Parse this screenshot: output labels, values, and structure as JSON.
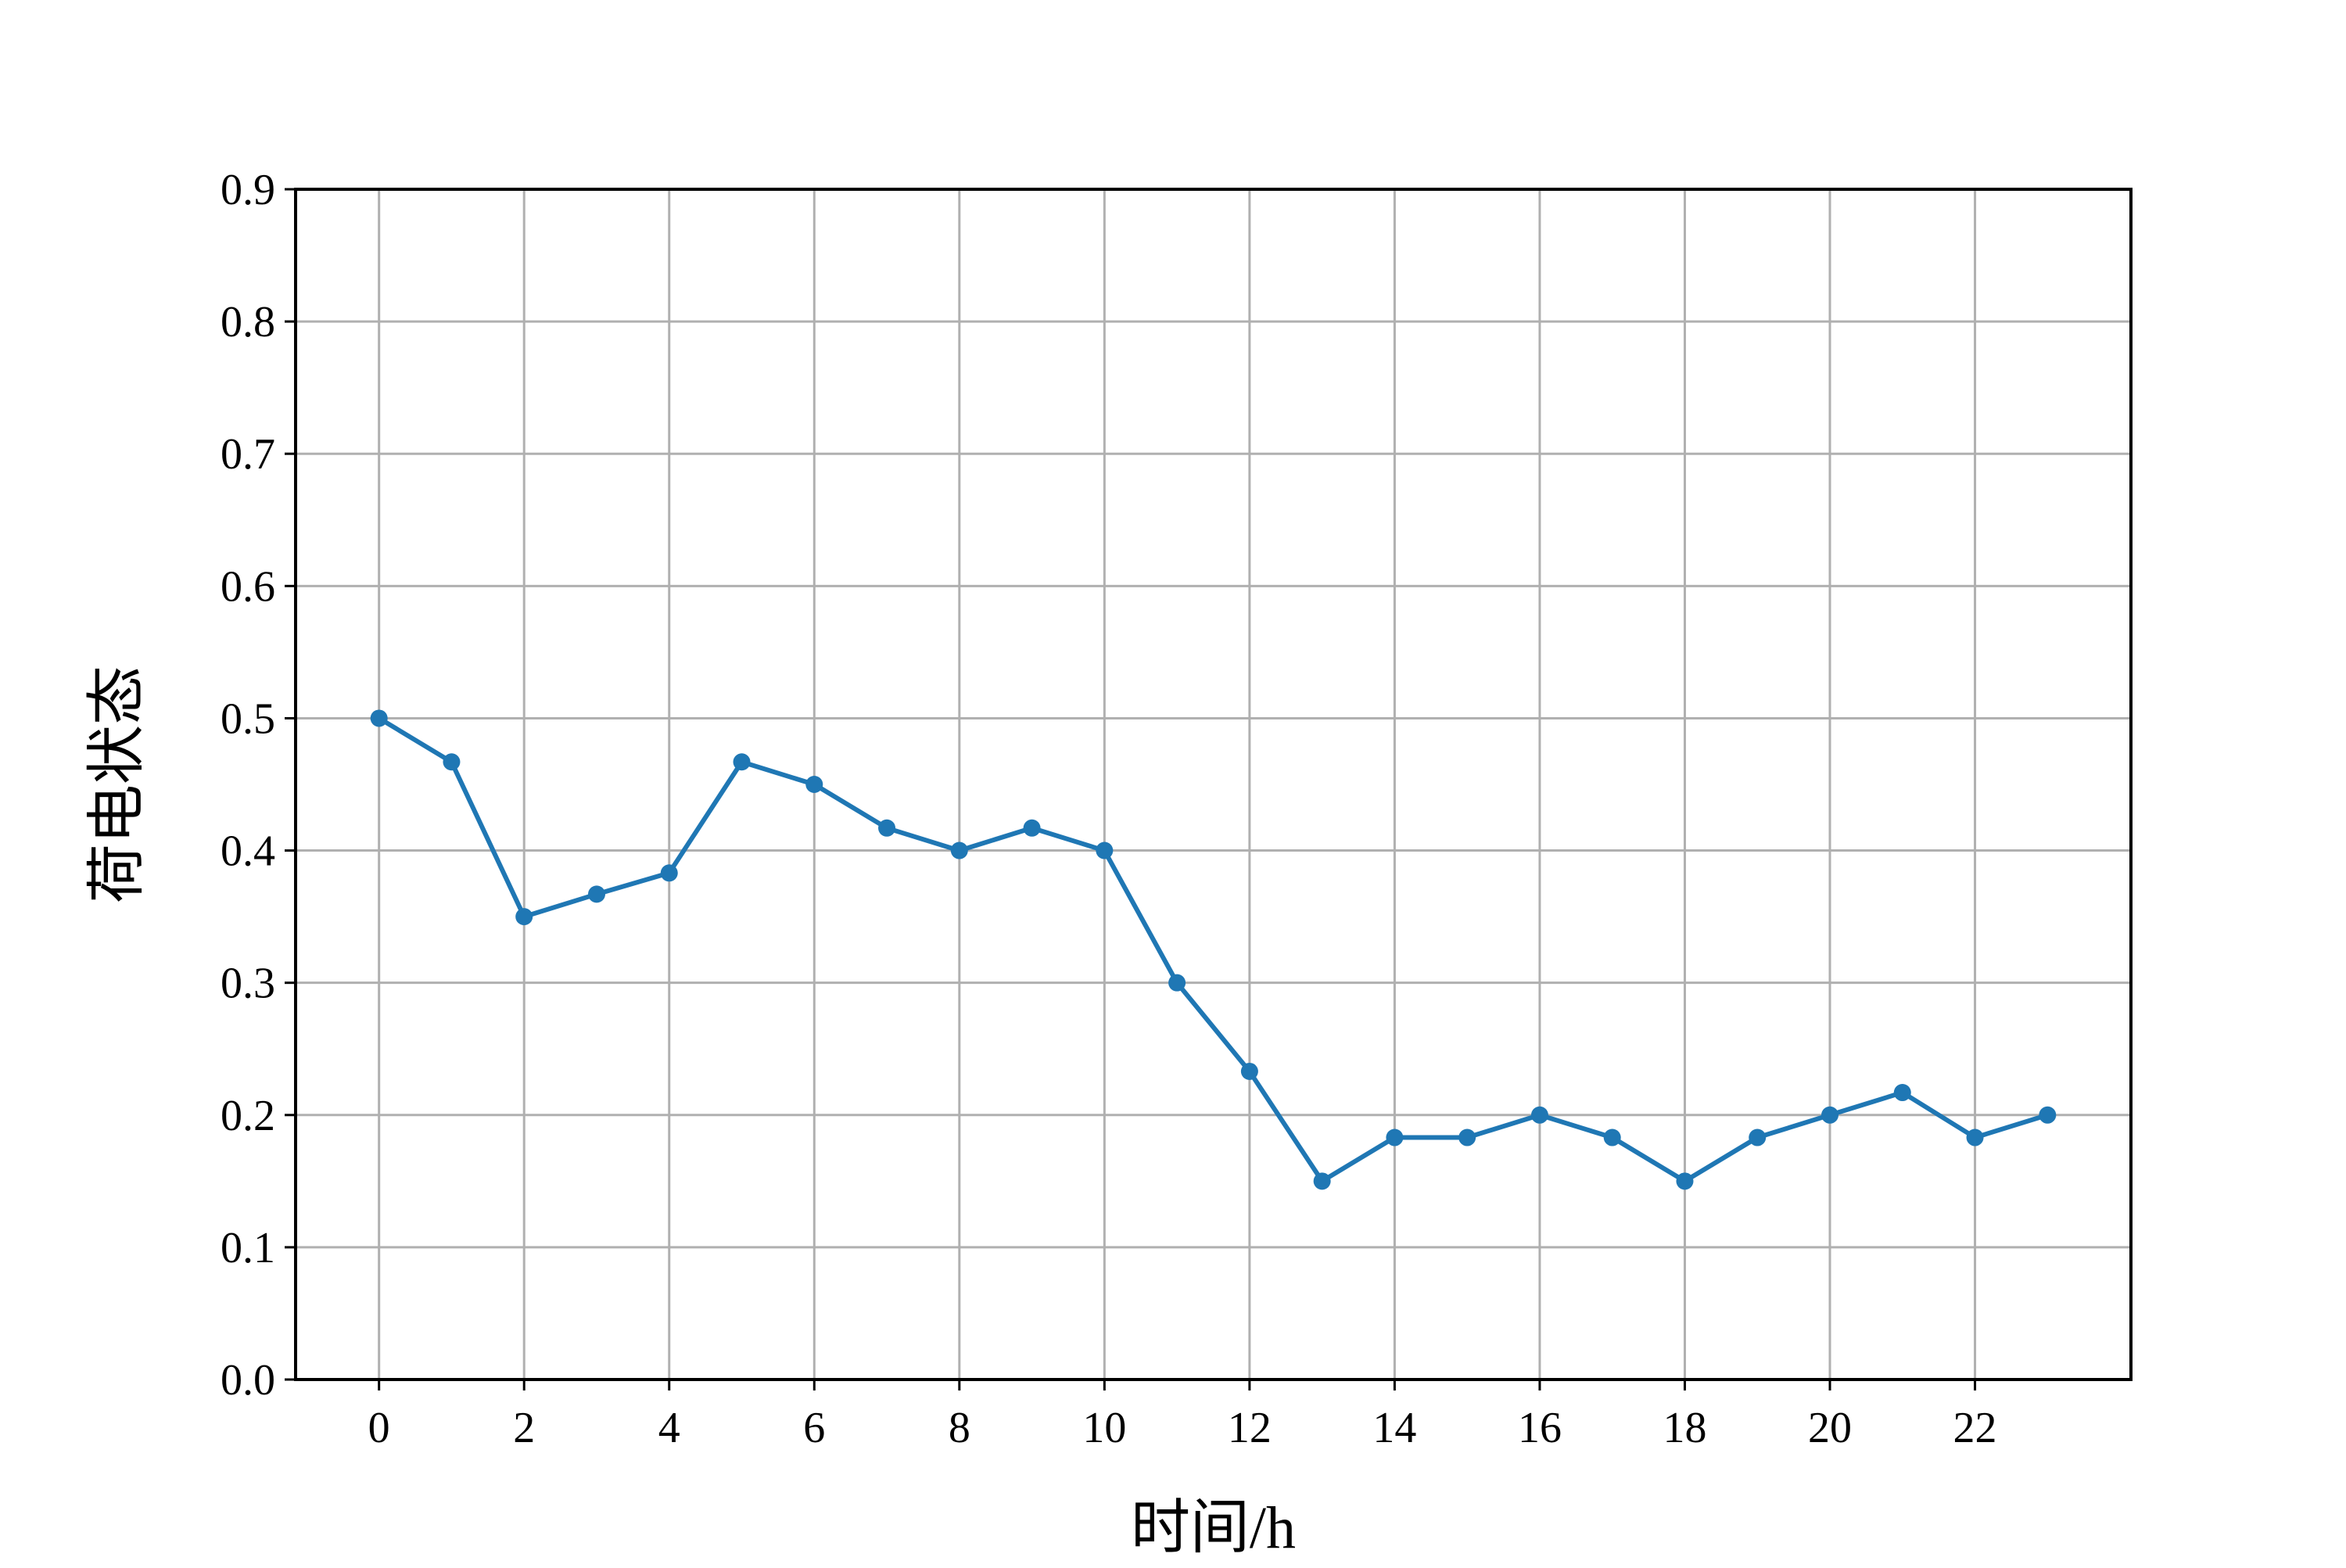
{
  "chart_data": {
    "type": "line",
    "title": "",
    "xlabel": "时间/h",
    "ylabel": "荷电状态",
    "xlim": [
      -1.15,
      24.15
    ],
    "ylim": [
      0.0,
      0.9
    ],
    "xticks": [
      0,
      2,
      4,
      6,
      8,
      10,
      12,
      14,
      16,
      18,
      20,
      22
    ],
    "yticks": [
      "0.0",
      "0.1",
      "0.2",
      "0.3",
      "0.4",
      "0.5",
      "0.6",
      "0.7",
      "0.8",
      "0.9"
    ],
    "grid": true,
    "legend": "none",
    "colors": {
      "line": "#1f77b4",
      "grid": "#b0b0b0",
      "axes": "#000000"
    },
    "series": [
      {
        "x": [
          0,
          1,
          2,
          3,
          4,
          5,
          6,
          7,
          8,
          9,
          10,
          11,
          12,
          13,
          14,
          15,
          16,
          17,
          18,
          19,
          20,
          21,
          22,
          23
        ],
        "values": [
          0.5,
          0.467,
          0.35,
          0.367,
          0.383,
          0.467,
          0.45,
          0.417,
          0.4,
          0.417,
          0.4,
          0.3,
          0.233,
          0.15,
          0.183,
          0.183,
          0.2,
          0.183,
          0.15,
          0.183,
          0.2,
          0.217,
          0.183,
          0.2
        ]
      }
    ]
  }
}
